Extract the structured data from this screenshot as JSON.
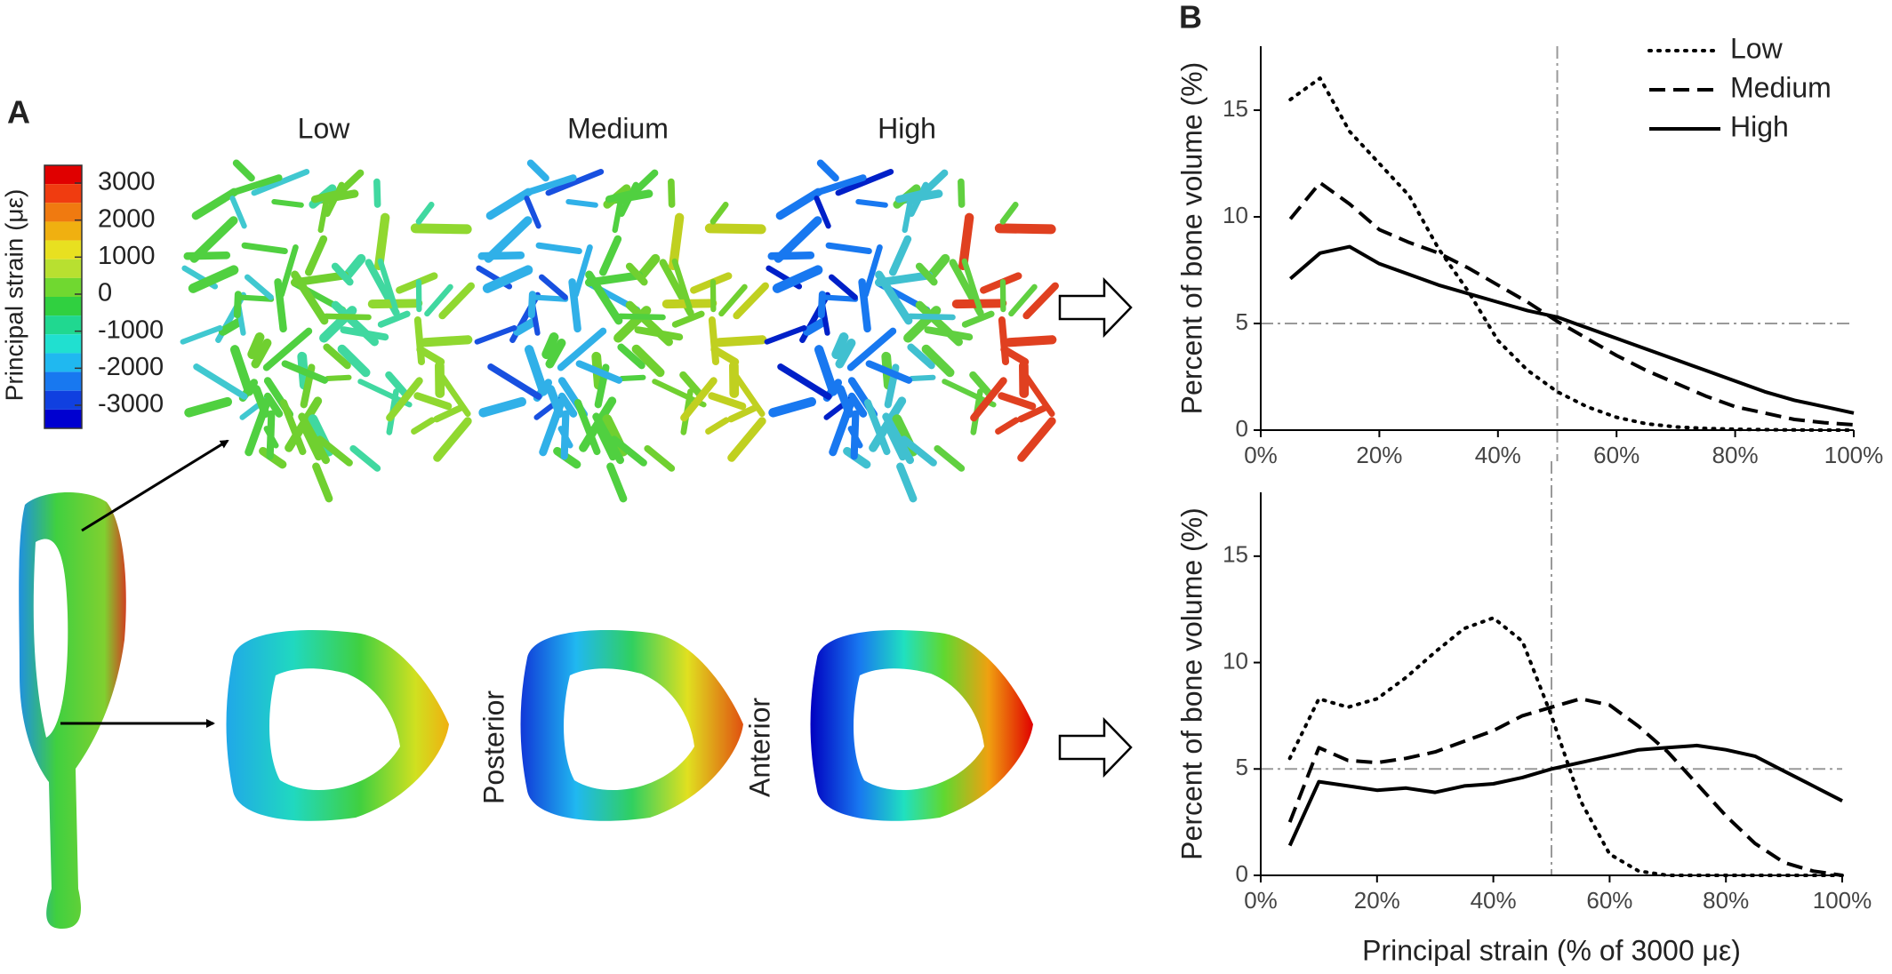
{
  "panel_a": {
    "label": "A",
    "colorbar_title": "Principal strain (με)",
    "colorbar_ticks": [
      3000,
      2000,
      1000,
      0,
      -1000,
      -2000,
      -3000
    ],
    "colorbar_colors": [
      "#e00000",
      "#f03c10",
      "#f07a10",
      "#f0b010",
      "#e8e020",
      "#b8e030",
      "#70d830",
      "#30d040",
      "#20d890",
      "#20e0d0",
      "#20b8f0",
      "#1878f0",
      "#1040e0",
      "#0000d0"
    ],
    "columns": [
      "Low",
      "Medium",
      "High"
    ],
    "section_labels": [
      "Posterior",
      "Anterior"
    ]
  },
  "chart_data": [
    {
      "type": "line",
      "panel_label": "B",
      "ylabel": "Percent of bone volume (%)",
      "xlim": [
        0,
        100
      ],
      "xticks": [
        {
          "value": 0,
          "label": "0%"
        },
        {
          "value": 20,
          "label": "20%"
        },
        {
          "value": 40,
          "label": "40%"
        },
        {
          "value": 60,
          "label": "60%"
        },
        {
          "value": 80,
          "label": "80%"
        },
        {
          "value": 100,
          "label": "100%"
        }
      ],
      "ylim": [
        0,
        18
      ],
      "yticks": [
        0,
        5,
        10,
        15
      ],
      "reference_y": 5,
      "reference_x": 50,
      "legend": "upper right",
      "x": [
        5,
        10,
        15,
        20,
        25,
        30,
        35,
        40,
        45,
        50,
        55,
        60,
        65,
        70,
        75,
        80,
        85,
        90,
        95,
        100
      ],
      "series": [
        {
          "name": "Low",
          "color": "#000000",
          "dash": "dotted",
          "values": [
            15.5,
            16.5,
            14.0,
            12.5,
            11.0,
            8.5,
            6.5,
            4.2,
            2.8,
            1.8,
            1.1,
            0.6,
            0.3,
            0.15,
            0.08,
            0.04,
            0.02,
            0.01,
            0,
            0
          ]
        },
        {
          "name": "Medium",
          "color": "#000000",
          "dash": "dashed",
          "values": [
            9.9,
            11.6,
            10.6,
            9.4,
            8.8,
            8.3,
            7.6,
            6.8,
            6.0,
            5.1,
            4.3,
            3.5,
            2.8,
            2.2,
            1.6,
            1.1,
            0.8,
            0.5,
            0.35,
            0.25
          ]
        },
        {
          "name": "High",
          "color": "#000000",
          "dash": "solid",
          "values": [
            7.1,
            8.3,
            8.6,
            7.8,
            7.3,
            6.8,
            6.4,
            6.0,
            5.6,
            5.3,
            4.8,
            4.3,
            3.8,
            3.3,
            2.8,
            2.3,
            1.8,
            1.4,
            1.1,
            0.8
          ]
        }
      ]
    },
    {
      "type": "line",
      "ylabel": "Percent of bone volume (%)",
      "xlabel": "Principal strain (% of 3000 με)",
      "xlim": [
        0,
        100
      ],
      "xticks": [
        {
          "value": 0,
          "label": "0%"
        },
        {
          "value": 20,
          "label": "20%"
        },
        {
          "value": 40,
          "label": "40%"
        },
        {
          "value": 60,
          "label": "60%"
        },
        {
          "value": 80,
          "label": "80%"
        },
        {
          "value": 100,
          "label": "100%"
        }
      ],
      "ylim": [
        0,
        18
      ],
      "yticks": [
        0,
        5,
        10,
        15
      ],
      "reference_y": 5,
      "reference_x": 50,
      "x": [
        5,
        10,
        15,
        20,
        25,
        30,
        35,
        40,
        45,
        50,
        55,
        60,
        65,
        70,
        75,
        80,
        85,
        90,
        95,
        100
      ],
      "series": [
        {
          "color": "#000000",
          "dash": "dotted",
          "values": [
            5.5,
            8.3,
            7.9,
            8.3,
            9.3,
            10.5,
            11.6,
            12.1,
            11.0,
            7.5,
            3.5,
            1.0,
            0.2,
            0,
            0,
            0,
            0,
            0,
            0,
            0
          ]
        },
        {
          "color": "#000000",
          "dash": "dashed",
          "values": [
            2.5,
            6.0,
            5.4,
            5.3,
            5.5,
            5.8,
            6.3,
            6.8,
            7.5,
            7.9,
            8.3,
            8.0,
            7.0,
            5.8,
            4.3,
            2.8,
            1.5,
            0.6,
            0.2,
            0
          ]
        },
        {
          "color": "#000000",
          "dash": "solid",
          "values": [
            1.4,
            4.4,
            4.2,
            4.0,
            4.1,
            3.9,
            4.2,
            4.3,
            4.6,
            5.0,
            5.3,
            5.6,
            5.9,
            6.0,
            6.1,
            5.9,
            5.6,
            4.9,
            4.2,
            3.5
          ]
        }
      ]
    }
  ]
}
